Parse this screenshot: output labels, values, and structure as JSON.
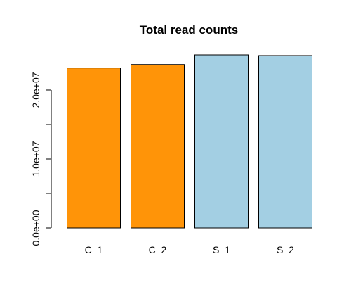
{
  "chart_data": {
    "type": "bar",
    "title": "Total read counts",
    "categories": [
      "C_1",
      "C_2",
      "S_1",
      "S_2"
    ],
    "values": [
      23200000,
      23700000,
      25100000,
      25000000
    ],
    "bar_colors": [
      "#ff9408",
      "#ff9408",
      "#a3cfe3",
      "#a3cfe3"
    ],
    "ylim": [
      0,
      25100000
    ],
    "y_ticks": [
      0,
      5000000,
      10000000,
      15000000,
      20000000
    ],
    "y_tick_labels": [
      "0.0e+00",
      "",
      "1.0e+07",
      "",
      "2.0e+07"
    ],
    "xlabel": "",
    "ylabel": "",
    "grid": false,
    "legend": "none"
  }
}
